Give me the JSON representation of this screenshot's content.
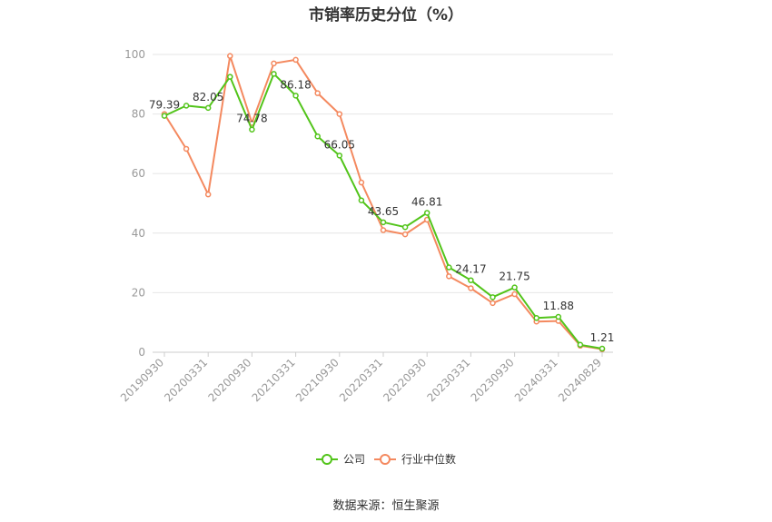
{
  "chart_data": {
    "type": "line",
    "title": "市销率历史分位（%）",
    "ylim": [
      0,
      100
    ],
    "yticks": [
      0,
      20,
      40,
      60,
      80,
      100
    ],
    "x": [
      "20190930",
      "20191231",
      "20200331",
      "20200630",
      "20200930",
      "20201231",
      "20210331",
      "20210630",
      "20210930",
      "20211231",
      "20220331",
      "20220630",
      "20220930",
      "20221231",
      "20230331",
      "20230630",
      "20230930",
      "20231231",
      "20240331",
      "20240630",
      "20240829"
    ],
    "xtick_labels": [
      "20190930",
      "20200331",
      "20200930",
      "20210331",
      "20210930",
      "20220331",
      "20220930",
      "20230331",
      "20230930",
      "20240331",
      "20240829"
    ],
    "grid": true,
    "legend_position": "bottom",
    "series": [
      {
        "name": "公司",
        "color": "#52c41a",
        "values": [
          79.39,
          82.8,
          82.05,
          92.5,
          74.78,
          93.5,
          86.18,
          72.5,
          66.05,
          51.0,
          43.65,
          42.0,
          46.81,
          28.5,
          24.17,
          18.5,
          21.75,
          11.5,
          11.88,
          2.5,
          1.21
        ],
        "labels": {
          "0": "79.39",
          "2": "82.05",
          "4": "74.78",
          "6": "86.18",
          "8": "66.05",
          "10": "43.65",
          "12": "46.81",
          "14": "24.17",
          "16": "21.75",
          "18": "11.88",
          "20": "1.21"
        }
      },
      {
        "name": "行业中位数",
        "color": "#f4895f",
        "values": [
          80.0,
          68.3,
          53.0,
          99.5,
          77.0,
          97.0,
          98.2,
          87.0,
          80.0,
          57.0,
          41.0,
          39.6,
          44.5,
          25.5,
          21.5,
          16.5,
          19.5,
          10.3,
          10.5,
          2.2,
          1.0
        ]
      }
    ]
  },
  "source": "数据来源：恒生聚源"
}
